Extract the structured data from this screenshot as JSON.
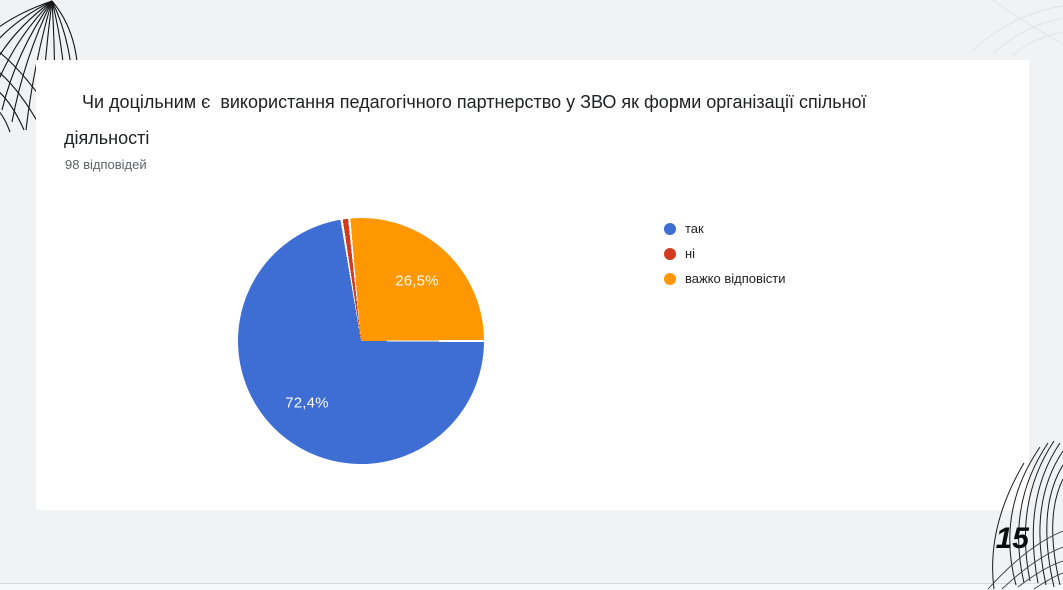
{
  "slide": {
    "question_title": "Чи доцільним є  використання педагогічного партнерство у ЗВО як форми організації спільної діяльності",
    "responses_label": "98 відповідей",
    "page_number": "15"
  },
  "chart_data": {
    "type": "pie",
    "title": "Чи доцільним є використання педагогічного партнерство у ЗВО як форми організації спільної діяльності",
    "subtitle": "98 відповідей",
    "total_responses": 98,
    "legend_position": "right",
    "start_angle_deg": 90,
    "direction": "clockwise",
    "slice_border_color": "#ffffff",
    "series": [
      {
        "label": "так",
        "value_pct": 72.4,
        "color": "#3e6ed3",
        "data_label": "72,4%"
      },
      {
        "label": "ні",
        "value_pct": 1.0,
        "color": "#d23b20",
        "data_label": ""
      },
      {
        "label": "важко відповісти",
        "value_pct": 26.5,
        "color": "#ff9800",
        "data_label": "26,5%"
      }
    ]
  },
  "decorations": {
    "top_left": "botanical-line-art",
    "top_right": "faint-line-art",
    "bottom_right": "botanical-line-art"
  },
  "page": {
    "background_color": "#f1f2f4",
    "card_color": "#ffffff"
  }
}
